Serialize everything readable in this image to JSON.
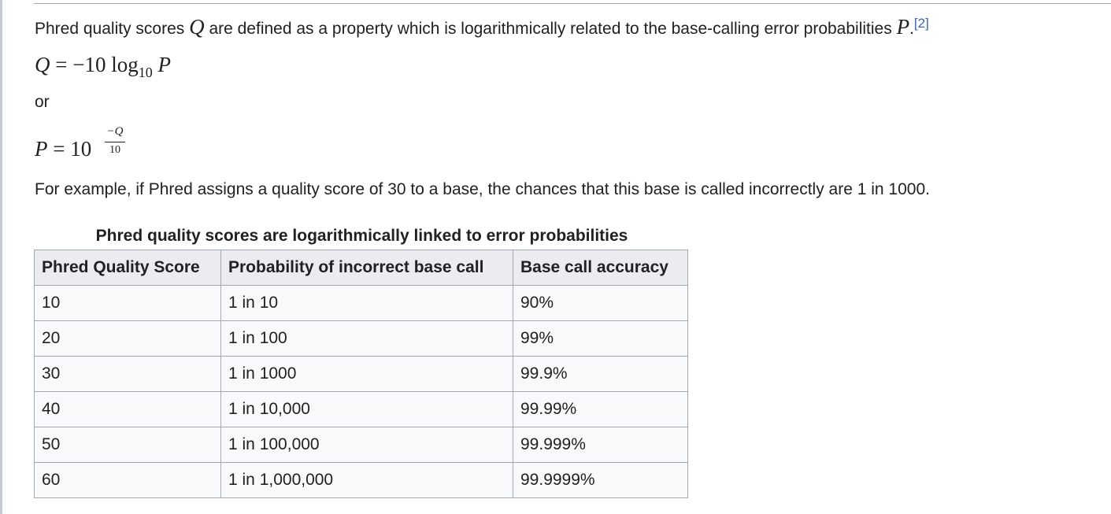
{
  "intro": {
    "text_before": "Phred quality scores ",
    "var_q": "Q",
    "text_middle": " are defined as a property which is logarithmically related to the base-calling error probabilities ",
    "var_p": "P",
    "period": ".",
    "ref": "[2]"
  },
  "formula1": {
    "lhs": "Q",
    "equals": " = ",
    "coef": "−10 ",
    "log": "log",
    "sub": "10",
    "var": " P"
  },
  "or_text": "or",
  "formula2": {
    "lhs": "P",
    "equals": " = ",
    "base": "10",
    "exp_num": "−Q",
    "exp_den": "10"
  },
  "example_text": "For example, if Phred assigns a quality score of 30 to a base, the chances that this base is called incorrectly are 1 in 1000.",
  "table": {
    "caption": "Phred quality scores are logarithmically linked to error probabilities",
    "headers": [
      "Phred Quality Score",
      "Probability of incorrect base call",
      "Base call accuracy"
    ],
    "rows": [
      [
        "10",
        "1 in 10",
        "90%"
      ],
      [
        "20",
        "1 in 100",
        "99%"
      ],
      [
        "30",
        "1 in 1000",
        "99.9%"
      ],
      [
        "40",
        "1 in 10,000",
        "99.99%"
      ],
      [
        "50",
        "1 in 100,000",
        "99.999%"
      ],
      [
        "60",
        "1 in 1,000,000",
        "99.9999%"
      ]
    ]
  }
}
